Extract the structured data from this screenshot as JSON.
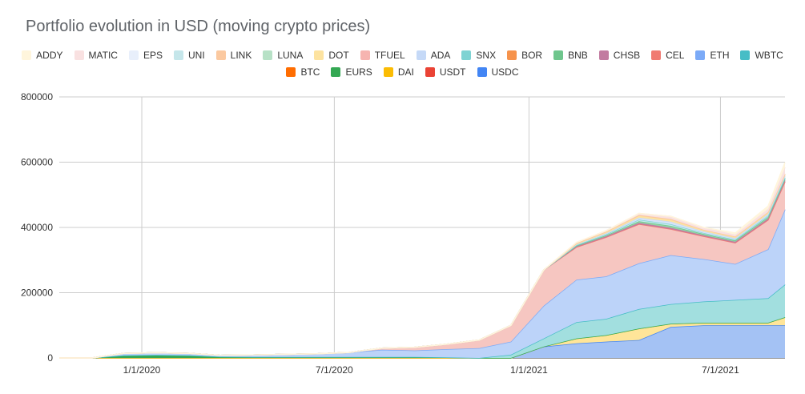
{
  "chart_data": {
    "type": "area",
    "stacked": true,
    "title": "Portfolio evolution in USD (moving crypto prices)",
    "xlabel": "",
    "ylabel": "",
    "ylim": [
      0,
      800000
    ],
    "yticks": [
      0,
      200000,
      400000,
      600000,
      800000
    ],
    "ytick_labels": [
      "0",
      "200000",
      "400000",
      "600000",
      "800000"
    ],
    "xlim": [
      "2019-10-15",
      "2021-08-31"
    ],
    "xticks": [
      "2020-01-01",
      "2020-07-01",
      "2021-01-01",
      "2021-07-01"
    ],
    "xtick_labels": [
      "1/1/2020",
      "7/1/2020",
      "1/1/2021",
      "7/1/2021"
    ],
    "grid": true,
    "legend_position": "top",
    "x": [
      "2019-10-15",
      "2019-11-15",
      "2019-12-15",
      "2020-01-15",
      "2020-02-15",
      "2020-03-15",
      "2020-04-15",
      "2020-05-15",
      "2020-06-15",
      "2020-07-15",
      "2020-08-15",
      "2020-09-15",
      "2020-10-15",
      "2020-11-15",
      "2020-12-15",
      "2021-01-15",
      "2021-02-15",
      "2021-03-15",
      "2021-04-15",
      "2021-05-15",
      "2021-06-15",
      "2021-07-15",
      "2021-08-15",
      "2021-08-31"
    ],
    "series": [
      {
        "name": "USDC",
        "color": "#a4c2f4",
        "values": [
          0,
          0,
          0,
          0,
          0,
          0,
          0,
          0,
          0,
          0,
          0,
          0,
          0,
          0,
          0,
          35000,
          45000,
          50000,
          55000,
          95000,
          100000,
          100000,
          100000,
          100000
        ]
      },
      {
        "name": "USDT",
        "color": "#ea4335",
        "values": [
          0,
          0,
          0,
          0,
          0,
          0,
          0,
          0,
          0,
          0,
          0,
          0,
          0,
          0,
          0,
          0,
          0,
          0,
          0,
          0,
          0,
          0,
          0,
          0
        ]
      },
      {
        "name": "DAI",
        "color": "#ffe599",
        "values": [
          0,
          0,
          0,
          0,
          0,
          0,
          0,
          0,
          0,
          0,
          0,
          0,
          0,
          0,
          0,
          0,
          15000,
          20000,
          35000,
          10000,
          8000,
          8000,
          8000,
          25000
        ]
      },
      {
        "name": "EURS",
        "color": "#34a853",
        "values": [
          0,
          0,
          8000,
          9000,
          8000,
          4000,
          3000,
          3000,
          3000,
          3000,
          3000,
          3000,
          2000,
          0,
          0,
          0,
          0,
          0,
          0,
          0,
          0,
          0,
          0,
          0
        ]
      },
      {
        "name": "BTC",
        "color": "#ff6d01",
        "values": [
          0,
          0,
          0,
          0,
          0,
          0,
          0,
          0,
          0,
          0,
          0,
          0,
          0,
          0,
          0,
          0,
          0,
          0,
          0,
          0,
          0,
          0,
          0,
          0
        ]
      },
      {
        "name": "WBTC",
        "color": "#a2dfdf",
        "values": [
          0,
          0,
          0,
          0,
          0,
          0,
          0,
          0,
          0,
          0,
          0,
          0,
          0,
          0,
          10000,
          25000,
          50000,
          50000,
          60000,
          60000,
          65000,
          70000,
          75000,
          100000
        ]
      },
      {
        "name": "ETH",
        "color": "#bcd3f9",
        "values": [
          0,
          0,
          6000,
          7000,
          6000,
          4000,
          6000,
          8000,
          10000,
          14000,
          22000,
          20000,
          25000,
          30000,
          40000,
          100000,
          130000,
          130000,
          140000,
          150000,
          130000,
          110000,
          150000,
          230000
        ]
      },
      {
        "name": "CEL",
        "color": "#f6c6c1",
        "values": [
          0,
          0,
          0,
          0,
          0,
          0,
          0,
          0,
          0,
          0,
          5000,
          10000,
          15000,
          25000,
          50000,
          110000,
          100000,
          120000,
          120000,
          80000,
          70000,
          65000,
          90000,
          85000
        ]
      },
      {
        "name": "CHSB",
        "color": "#c27ba0",
        "values": [
          0,
          0,
          0,
          0,
          0,
          0,
          0,
          0,
          0,
          0,
          0,
          0,
          0,
          0,
          0,
          0,
          2000,
          3000,
          4000,
          4000,
          3000,
          3000,
          4000,
          4000
        ]
      },
      {
        "name": "BNB",
        "color": "#93d6a6",
        "values": [
          0,
          0,
          0,
          0,
          0,
          0,
          0,
          0,
          0,
          0,
          0,
          0,
          0,
          0,
          0,
          0,
          2000,
          3000,
          5000,
          6000,
          4000,
          4000,
          5000,
          5000
        ]
      },
      {
        "name": "BOR",
        "color": "#ffb370",
        "values": [
          0,
          0,
          0,
          0,
          0,
          0,
          0,
          0,
          0,
          0,
          0,
          0,
          0,
          0,
          0,
          0,
          0,
          0,
          0,
          0,
          0,
          0,
          0,
          0
        ]
      },
      {
        "name": "SNX",
        "color": "#c7ecec",
        "values": [
          0,
          0,
          0,
          0,
          0,
          0,
          0,
          0,
          0,
          0,
          0,
          0,
          0,
          0,
          0,
          0,
          2000,
          3000,
          5000,
          5000,
          3000,
          3000,
          4000,
          4000
        ]
      },
      {
        "name": "ADA",
        "color": "#d7e3f9",
        "values": [
          0,
          0,
          0,
          0,
          0,
          0,
          0,
          0,
          0,
          0,
          0,
          0,
          0,
          0,
          0,
          0,
          2000,
          3000,
          6000,
          8000,
          5000,
          4000,
          5000,
          5000
        ]
      },
      {
        "name": "TFUEL",
        "color": "#f6b4b0",
        "values": [
          0,
          0,
          0,
          0,
          0,
          0,
          0,
          0,
          0,
          0,
          0,
          0,
          0,
          0,
          0,
          0,
          0,
          0,
          0,
          0,
          0,
          0,
          0,
          0
        ]
      },
      {
        "name": "DOT",
        "color": "#fde3a0",
        "values": [
          0,
          0,
          0,
          0,
          0,
          0,
          0,
          0,
          0,
          0,
          0,
          0,
          0,
          0,
          0,
          0,
          2000,
          3000,
          5000,
          5000,
          3000,
          3000,
          4000,
          4000
        ]
      },
      {
        "name": "LUNA",
        "color": "#b7e1c6",
        "values": [
          0,
          0,
          0,
          0,
          0,
          0,
          0,
          0,
          0,
          0,
          0,
          0,
          0,
          0,
          0,
          0,
          0,
          0,
          0,
          0,
          0,
          0,
          0,
          0
        ]
      },
      {
        "name": "LINK",
        "color": "#fbc9a0",
        "values": [
          0,
          0,
          0,
          0,
          0,
          0,
          0,
          0,
          0,
          0,
          0,
          0,
          0,
          0,
          0,
          0,
          2000,
          2000,
          3000,
          3000,
          2000,
          2000,
          2000,
          2000
        ]
      },
      {
        "name": "UNI",
        "color": "#c5e6ea",
        "values": [
          0,
          0,
          0,
          0,
          0,
          0,
          0,
          0,
          0,
          0,
          0,
          0,
          0,
          0,
          0,
          0,
          0,
          0,
          0,
          0,
          0,
          0,
          0,
          0
        ]
      },
      {
        "name": "EPS",
        "color": "#e8effb",
        "values": [
          0,
          0,
          0,
          0,
          0,
          0,
          0,
          0,
          0,
          0,
          0,
          0,
          0,
          0,
          0,
          0,
          0,
          0,
          0,
          0,
          0,
          0,
          0,
          0
        ]
      },
      {
        "name": "MATIC",
        "color": "#f9e1e1",
        "values": [
          0,
          0,
          0,
          0,
          0,
          0,
          0,
          0,
          0,
          0,
          0,
          0,
          0,
          0,
          0,
          0,
          2000,
          3000,
          5000,
          8000,
          7000,
          6000,
          10000,
          20000
        ]
      },
      {
        "name": "ADDY",
        "color": "#fff5dc",
        "values": [
          0,
          0,
          0,
          0,
          0,
          0,
          0,
          0,
          0,
          0,
          0,
          0,
          0,
          0,
          0,
          0,
          0,
          0,
          0,
          0,
          0,
          5000,
          8000,
          15000
        ]
      }
    ],
    "legend": [
      {
        "name": "ADDY",
        "color": "#fff5dc"
      },
      {
        "name": "MATIC",
        "color": "#f9e1e1"
      },
      {
        "name": "EPS",
        "color": "#e8effb"
      },
      {
        "name": "UNI",
        "color": "#c5e6ea"
      },
      {
        "name": "LINK",
        "color": "#fbc9a0"
      },
      {
        "name": "LUNA",
        "color": "#b7e1c6"
      },
      {
        "name": "DOT",
        "color": "#fde3a0"
      },
      {
        "name": "TFUEL",
        "color": "#f6b4b0"
      },
      {
        "name": "ADA",
        "color": "#c5d9f7"
      },
      {
        "name": "SNX",
        "color": "#7fd3d3"
      },
      {
        "name": "BOR",
        "color": "#f6934c"
      },
      {
        "name": "BNB",
        "color": "#6fc68d"
      },
      {
        "name": "CHSB",
        "color": "#c27ba0"
      },
      {
        "name": "CEL",
        "color": "#f07b72"
      },
      {
        "name": "ETH",
        "color": "#7baaf7"
      },
      {
        "name": "WBTC",
        "color": "#46bdc6"
      },
      {
        "name": "BTC",
        "color": "#ff6d01"
      },
      {
        "name": "EURS",
        "color": "#34a853"
      },
      {
        "name": "DAI",
        "color": "#fbbc04"
      },
      {
        "name": "USDT",
        "color": "#ea4335"
      },
      {
        "name": "USDC",
        "color": "#4285f4"
      }
    ]
  }
}
